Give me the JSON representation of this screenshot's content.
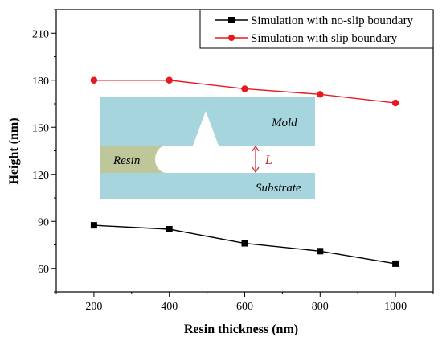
{
  "chart_data": {
    "type": "line",
    "title": "",
    "xlabel": "Resin thickness  (nm)",
    "ylabel": "Height (nm)",
    "xlim": [
      100,
      1100
    ],
    "ylim": [
      45,
      225
    ],
    "xticks": [
      "200",
      "400",
      "600",
      "800",
      "1000"
    ],
    "yticks": [
      "60",
      "90",
      "120",
      "150",
      "180",
      "210"
    ],
    "x": [
      200,
      400,
      600,
      800,
      1000
    ],
    "series": [
      {
        "name": "Simulation with no-slip boundary",
        "values": [
          87.5,
          85,
          76,
          71,
          63
        ],
        "color": "#000000",
        "marker": "square"
      },
      {
        "name": "Simulation with slip boundary",
        "values": [
          180,
          180,
          174.5,
          171,
          165.5
        ],
        "color": "#e8181e",
        "marker": "circle"
      }
    ],
    "legend": {
      "placement": "top-right"
    },
    "grid": false
  },
  "inset": {
    "mold_label": "Mold",
    "resin_label": "Resin",
    "substrate_label": "Substrate",
    "gap_label": "L",
    "mold_color": "#a6d5de",
    "resin_color": "#bec79a",
    "gap_color": "#c42a2a"
  }
}
